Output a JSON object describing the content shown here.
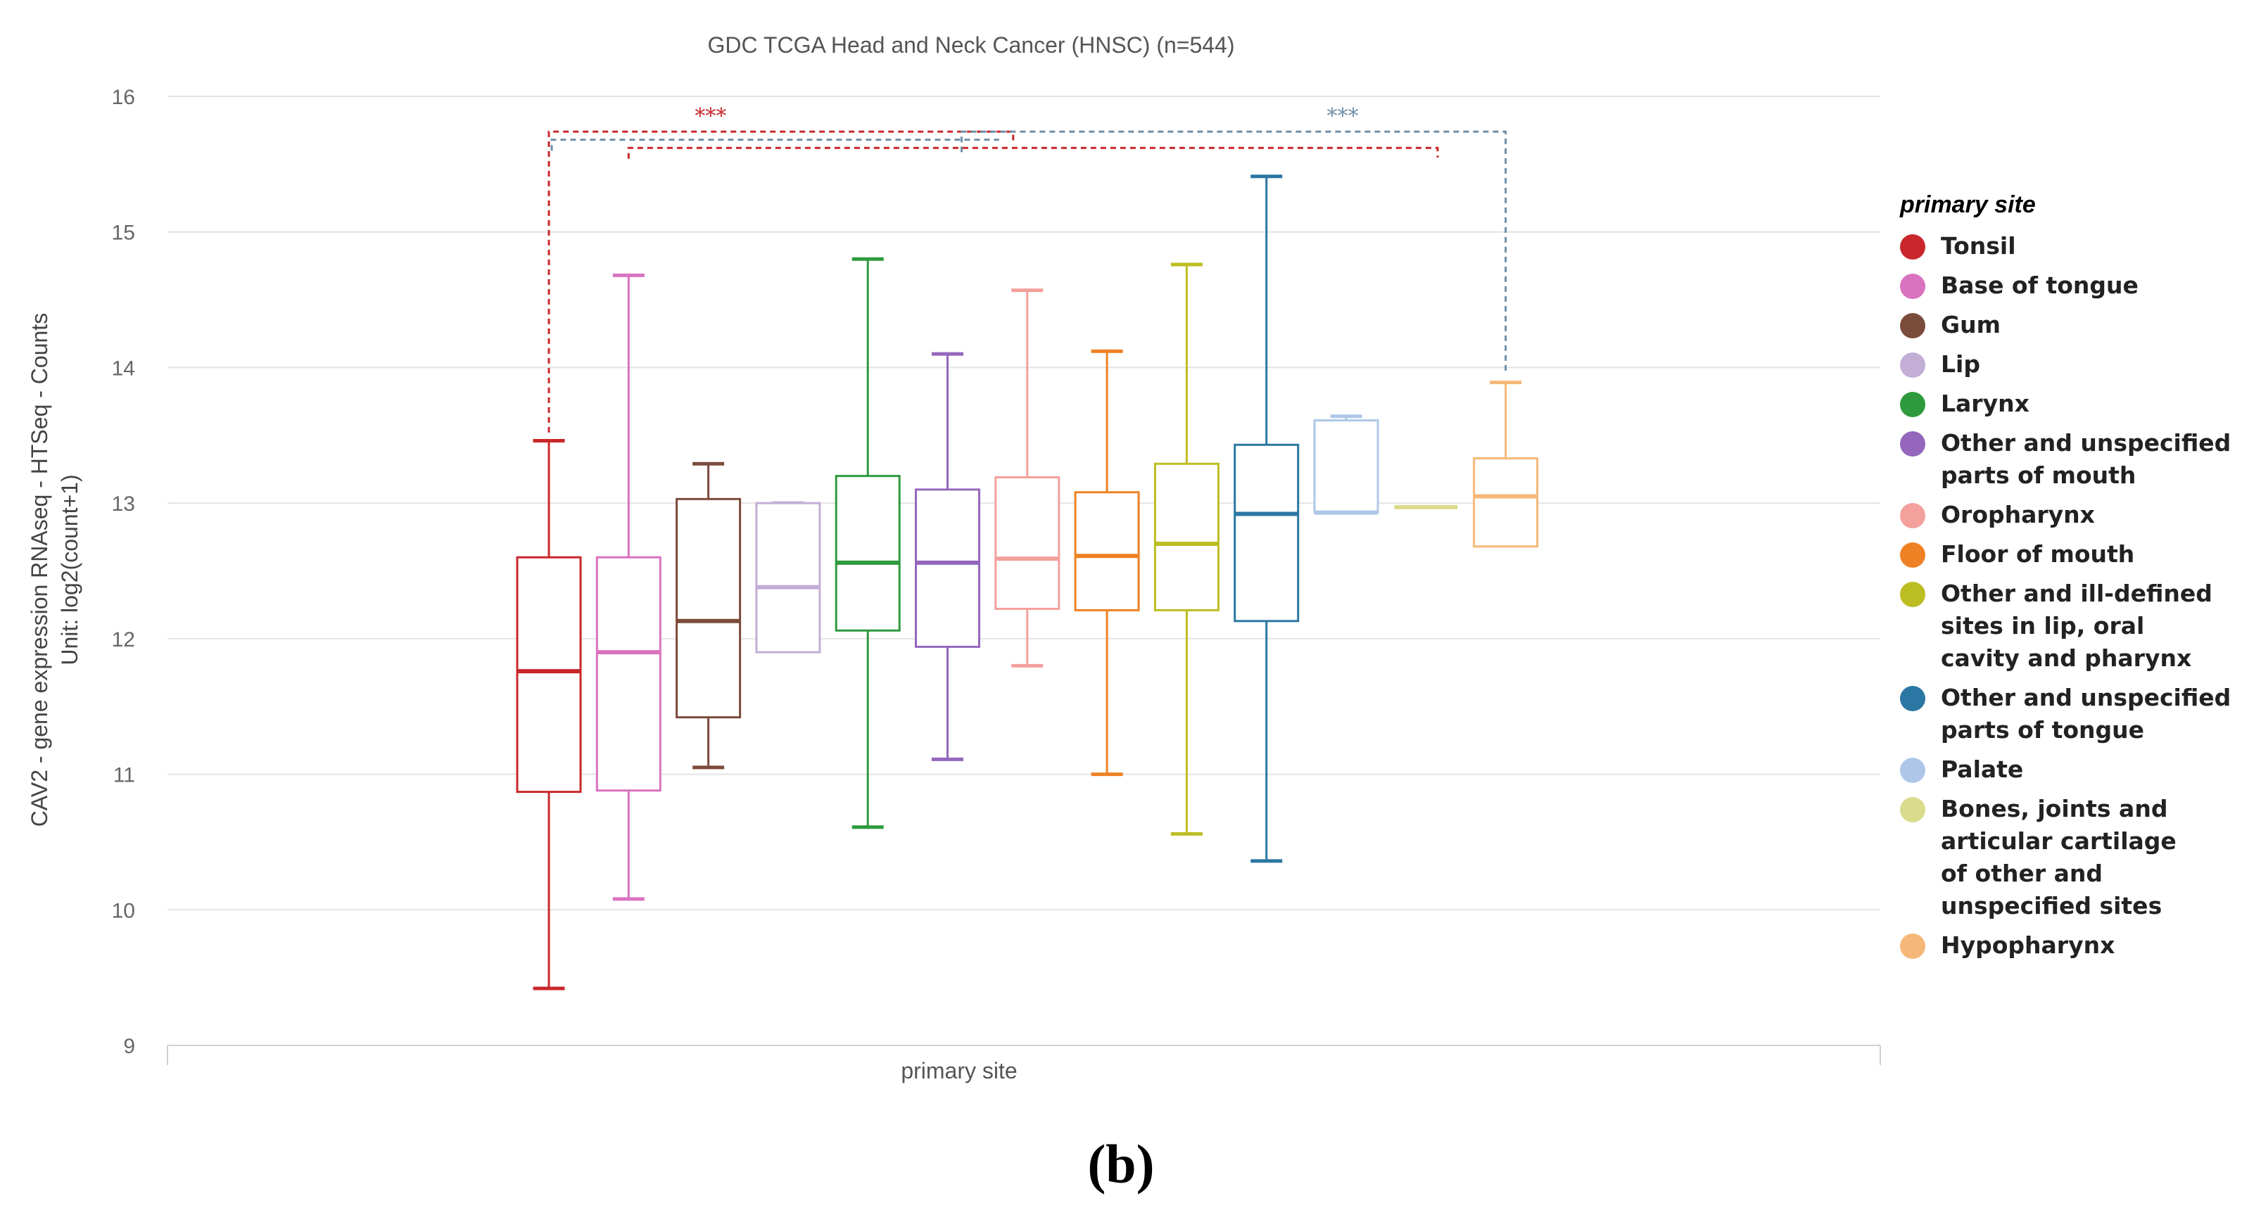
{
  "chart_data": {
    "type": "box",
    "title": "GDC TCGA Head and Neck Cancer (HNSC) (n=544)",
    "xlabel": "primary site",
    "ylabel_line1": "CAV2 - gene expression RNAseq - HTSeq - Counts",
    "ylabel_line2": "Unit: log2(count+1)",
    "ylim": [
      9,
      16
    ],
    "yticks": [
      "9",
      "10",
      "11",
      "12",
      "13",
      "14",
      "15",
      "16"
    ],
    "grid": true,
    "legend_title": "primary site",
    "legend_position": "right",
    "boxes": [
      {
        "name": "Tonsil",
        "color": "#c9272b",
        "min": 9.42,
        "q1": 10.87,
        "median": 11.76,
        "q3": 12.6,
        "max": 13.46
      },
      {
        "name": "Base of tongue",
        "color": "#d973c0",
        "min": 10.08,
        "q1": 10.88,
        "median": 11.9,
        "q3": 12.6,
        "max": 14.68
      },
      {
        "name": "Gum",
        "color": "#7b4b3c",
        "min": 11.05,
        "q1": 11.42,
        "median": 12.13,
        "q3": 13.03,
        "max": 13.29
      },
      {
        "name": "Lip",
        "color": "#c3aed6",
        "min": 11.9,
        "q1": 11.9,
        "median": 12.38,
        "q3": 13.0,
        "max": 13.0
      },
      {
        "name": "Larynx",
        "color": "#2f9a3d",
        "min": 10.61,
        "q1": 12.06,
        "median": 12.56,
        "q3": 13.2,
        "max": 14.8
      },
      {
        "name": "Other and unspecified parts of mouth",
        "color": "#9467bd",
        "min": 11.11,
        "q1": 11.94,
        "median": 12.56,
        "q3": 13.1,
        "max": 14.1
      },
      {
        "name": "Oropharynx",
        "color": "#f4a09c",
        "min": 11.8,
        "q1": 12.22,
        "median": 12.59,
        "q3": 13.19,
        "max": 14.57
      },
      {
        "name": "Floor of mouth",
        "color": "#ee8123",
        "min": 11.0,
        "q1": 12.21,
        "median": 12.61,
        "q3": 13.08,
        "max": 14.12
      },
      {
        "name": "Other and ill-defined sites in lip, oral cavity and pharynx",
        "color": "#bcbd22",
        "min": 10.56,
        "q1": 12.21,
        "median": 12.7,
        "q3": 13.29,
        "max": 14.76
      },
      {
        "name": "Other and unspecified parts of tongue",
        "color": "#2b77a3",
        "min": 10.36,
        "q1": 12.13,
        "median": 12.92,
        "q3": 13.43,
        "max": 15.41
      },
      {
        "name": "Palate",
        "color": "#aec7e8",
        "min": 12.93,
        "q1": 12.93,
        "median": 12.93,
        "q3": 13.61,
        "max": 13.64
      },
      {
        "name": "Bones, joints and articular cartilage of other and unspecified sites",
        "color": "#dbdb8d",
        "min": 12.97,
        "q1": 12.97,
        "median": 12.97,
        "q3": 12.97,
        "max": 12.97
      },
      {
        "name": "Hypopharynx",
        "color": "#f6b878",
        "min": 12.68,
        "q1": 12.68,
        "median": 13.05,
        "q3": 13.33,
        "max": 13.89
      }
    ],
    "annotations": [
      {
        "text": "***",
        "color": "#c9272b",
        "from_box": 0,
        "to_box": 6,
        "y": 15.74
      },
      {
        "text": "***",
        "color": "#6f8fa8",
        "from_box": 0,
        "to_box": 12,
        "y": 15.74
      }
    ]
  },
  "legend": [
    {
      "label": "Tonsil",
      "color": "#c9272b"
    },
    {
      "label": "Base of tongue",
      "color": "#d973c0"
    },
    {
      "label": "Gum",
      "color": "#7b4b3c"
    },
    {
      "label": "Lip",
      "color": "#c3aed6"
    },
    {
      "label": "Larynx",
      "color": "#2f9a3d"
    },
    {
      "label": "Other and unspecified\nparts of mouth",
      "color": "#9467bd"
    },
    {
      "label": "Oropharynx",
      "color": "#f4a09c"
    },
    {
      "label": "Floor of mouth",
      "color": "#ee8123"
    },
    {
      "label": "Other and ill-defined\nsites in lip, oral\ncavity and pharynx",
      "color": "#bcbd22"
    },
    {
      "label": "Other and unspecified\nparts of tongue",
      "color": "#2b77a3"
    },
    {
      "label": "Palate",
      "color": "#aec7e8"
    },
    {
      "label": "Bones, joints and\narticular cartilage\nof other and\nunspecified sites",
      "color": "#dbdb8d"
    },
    {
      "label": "Hypopharynx",
      "color": "#f6b878"
    }
  ],
  "caption": "(b)"
}
